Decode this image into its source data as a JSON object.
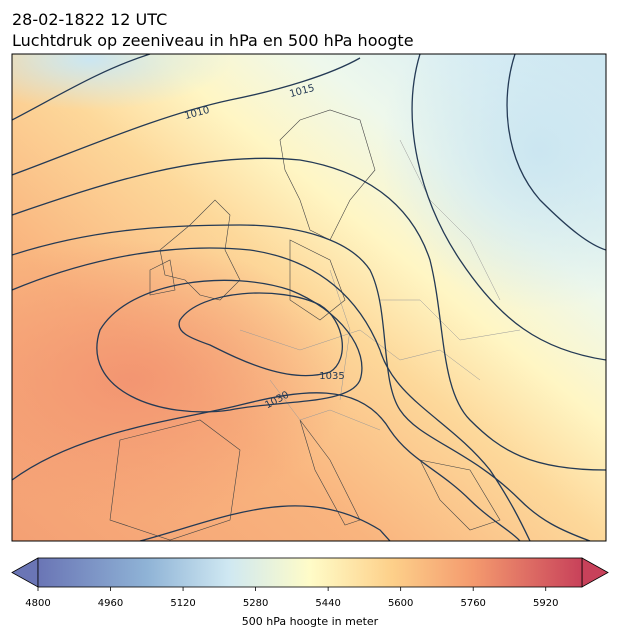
{
  "header": {
    "date": "28-02-1822 12 UTC",
    "title": "Luchtdruk op zeeniveau in hPa en 500 hPa hoogte"
  },
  "map": {
    "contour_labels": [
      "1010",
      "1015",
      "1030",
      "1035"
    ]
  },
  "colorbar": {
    "lim": [
      4800,
      6000
    ],
    "ticks": [
      4800,
      4960,
      5120,
      5280,
      5440,
      5600,
      5760,
      5920
    ],
    "label": "500 hPa hoogte in meter"
  }
}
